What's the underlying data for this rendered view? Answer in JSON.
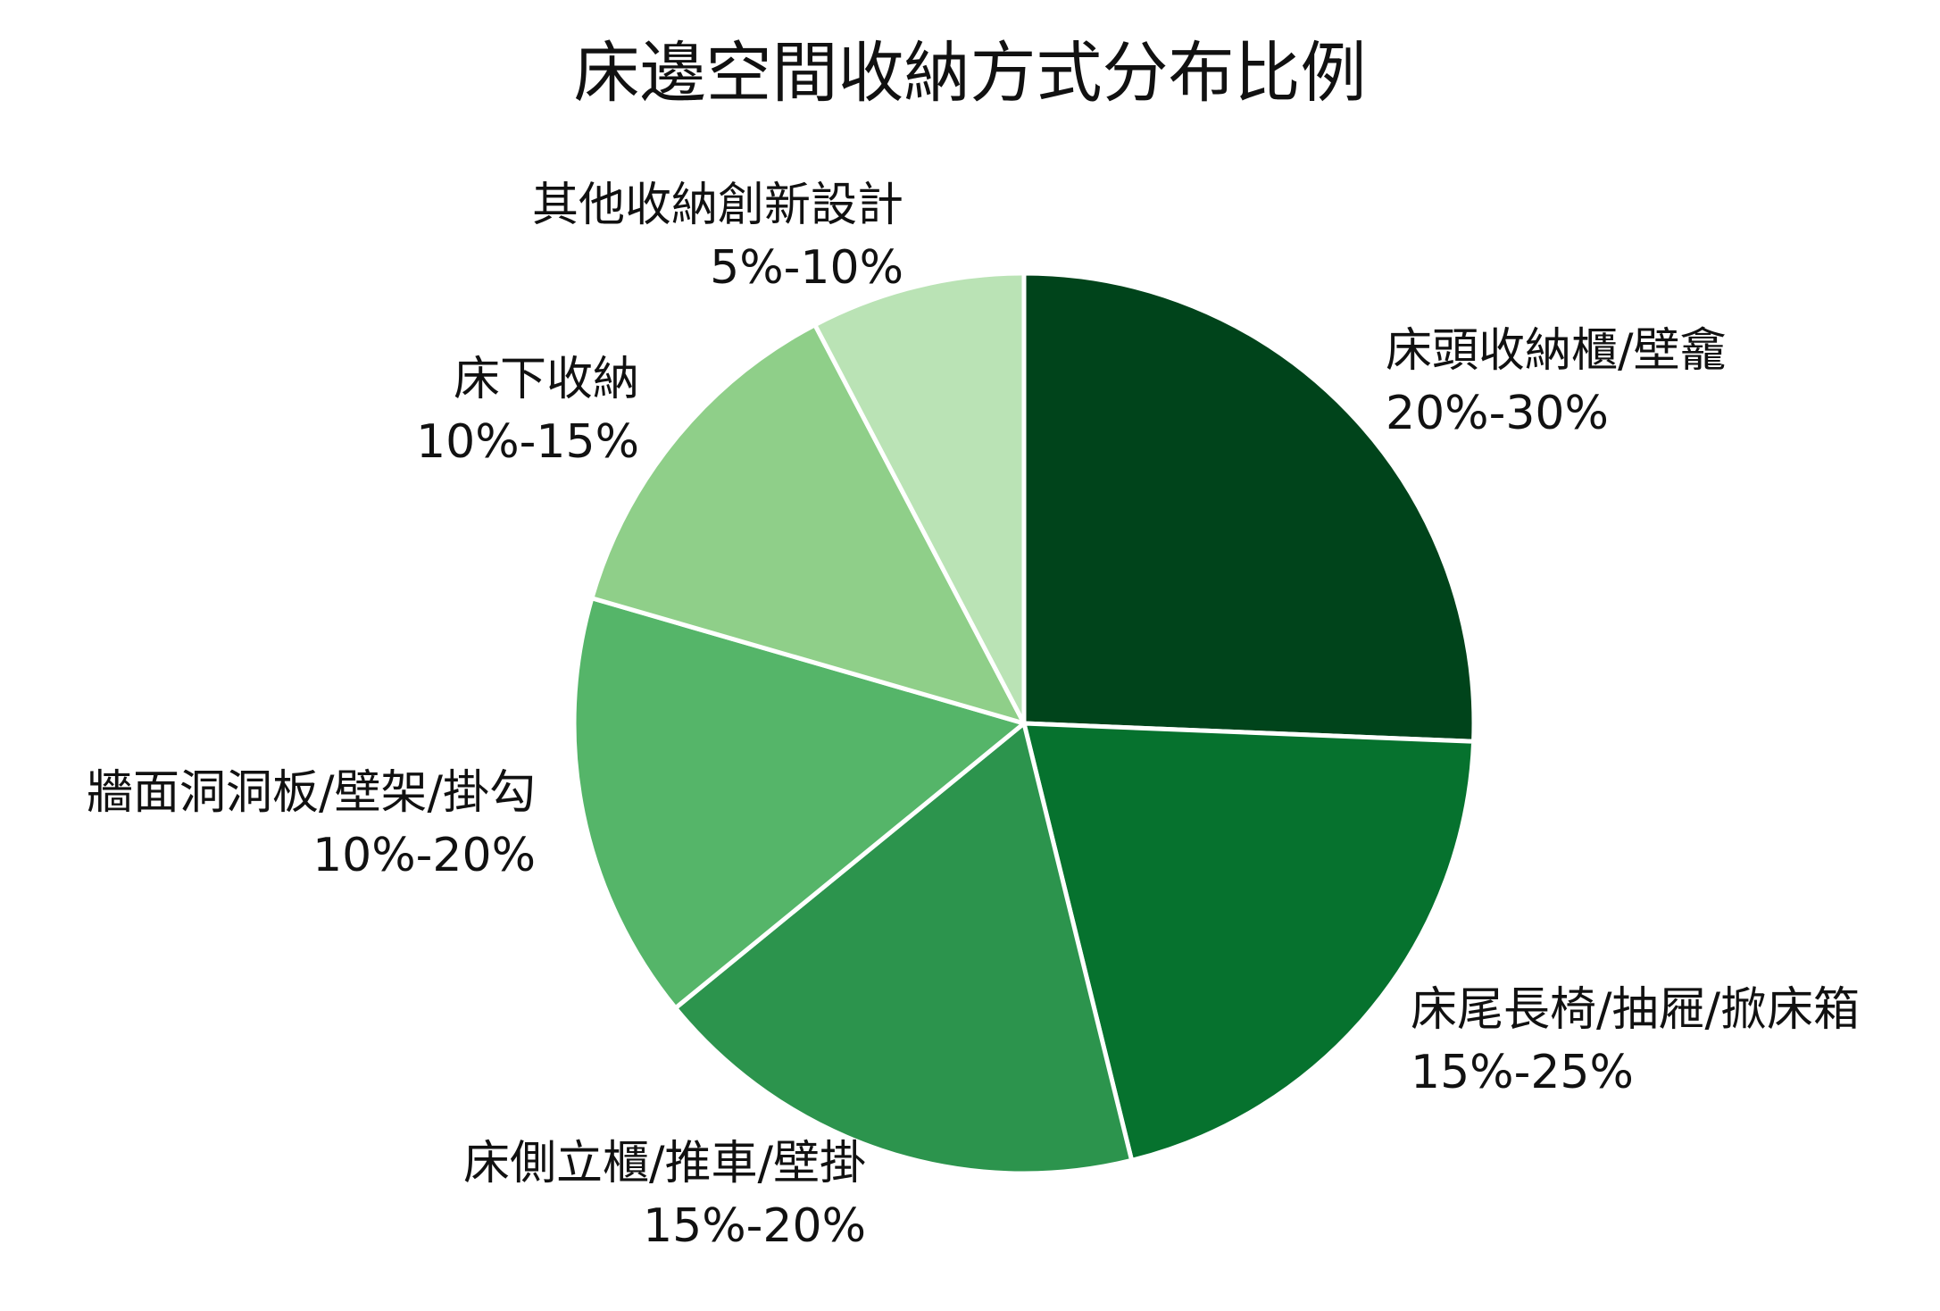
{
  "chart_data": {
    "type": "pie",
    "title": "床邊空間收納方式分布比例",
    "start_angle_deg": 90,
    "direction": "clockwise",
    "slices": [
      {
        "label": "床頭收納櫃/壁龕",
        "range_text": "20%-30%",
        "value": 25,
        "color": "#00441b"
      },
      {
        "label": "床尾長椅/抽屜/掀床箱",
        "range_text": "15%-25%",
        "value": 20,
        "color": "#06722e"
      },
      {
        "label": "床側立櫃/推車/壁掛",
        "range_text": "15%-20%",
        "value": 17.5,
        "color": "#2c944d"
      },
      {
        "label": "牆面洞洞板/壁架/掛勾",
        "range_text": "10%-20%",
        "value": 15,
        "color": "#55b569"
      },
      {
        "label": "床下收納",
        "range_text": "10%-15%",
        "value": 12.5,
        "color": "#8fcf89"
      },
      {
        "label": "其他收納創新設計",
        "range_text": "5%-10%",
        "value": 7.5,
        "color": "#bae3b5"
      }
    ],
    "slice_border_color": "#ffffff",
    "legend": "none"
  }
}
